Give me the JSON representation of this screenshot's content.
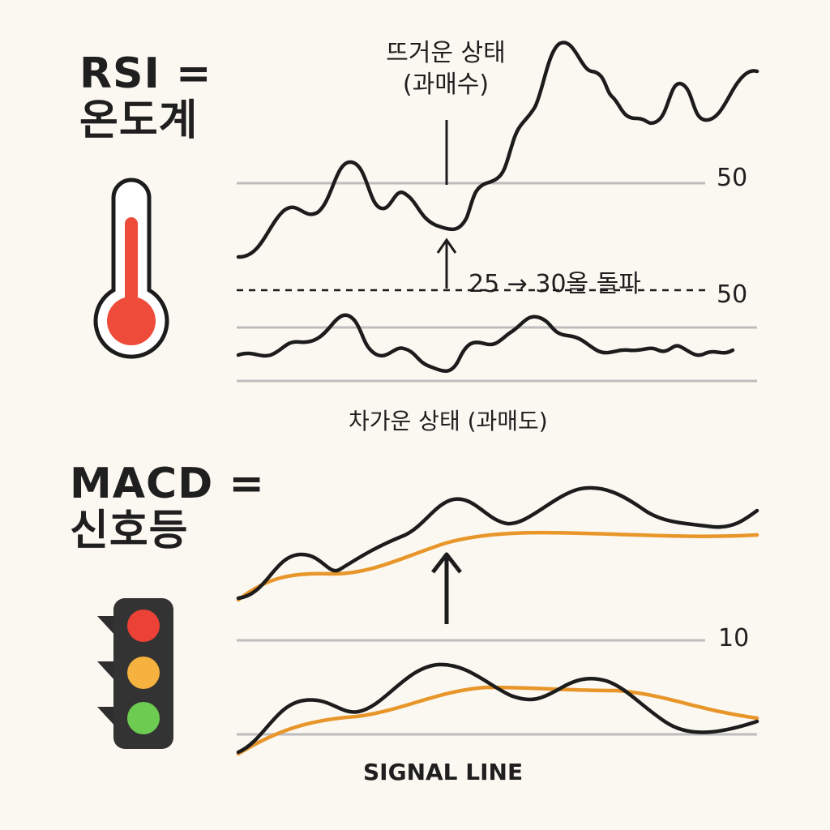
{
  "rsi": {
    "title": "RSI =\n온도계",
    "overbought_label": "뜨거운 상태\n(과매수)",
    "breakout_label": "25 → 30올 돌파",
    "oversold_label": "차가운 상태 (과매도)",
    "level_top": "50",
    "level_mid": "50"
  },
  "macd": {
    "title": "MACD =\n신호등",
    "level_label": "10",
    "signal_label": "SIGNAL LINE"
  },
  "colors": {
    "line": "#1c1c1c",
    "signal": "#e8962a",
    "grid": "#bdbdbd",
    "thermo_red": "#ee4b3a",
    "light_red": "#ec4136",
    "light_yellow": "#f6b23e",
    "light_green": "#6ecb52",
    "light_body": "#333333"
  },
  "icons": [
    "thermometer-icon",
    "traffic-light-icon",
    "arrow-up-icon"
  ]
}
